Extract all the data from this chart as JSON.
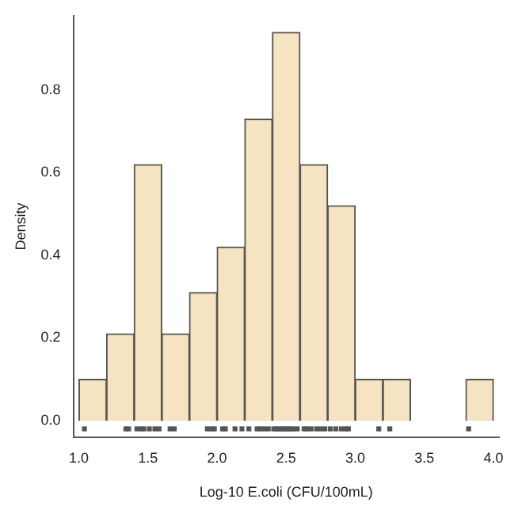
{
  "chart_data": {
    "type": "histogram",
    "xlabel": "Log-10 E.coli (CFU/100mL)",
    "ylabel": "Density",
    "bins": [
      1.0,
      1.2,
      1.4,
      1.6,
      1.8,
      2.0,
      2.2,
      2.4,
      2.6,
      2.8,
      3.0,
      3.2,
      3.4,
      3.6,
      3.8,
      4.0
    ],
    "values": [
      0.1,
      0.21,
      0.62,
      0.21,
      0.31,
      0.42,
      0.73,
      0.94,
      0.62,
      0.52,
      0.1,
      0.1,
      0,
      0,
      0.1
    ],
    "color": "#f5e3c2",
    "series": [
      {
        "type": "scatter",
        "color": "#555555",
        "values": [
          -0.02,
          -0.02,
          -0.02,
          -0.02,
          -0.02,
          -0.02,
          -0.02,
          -0.02,
          -0.02,
          -0.02,
          -0.02,
          -0.02,
          -0.02,
          -0.02,
          -0.02,
          -0.02,
          -0.02,
          -0.02,
          -0.02,
          -0.02,
          -0.02,
          -0.02,
          -0.02,
          -0.02,
          -0.02,
          -0.02,
          -0.02,
          -0.02,
          -0.02,
          -0.02,
          -0.02,
          -0.02,
          -0.02,
          -0.02,
          -0.02,
          -0.02,
          -0.02,
          -0.02,
          -0.02,
          -0.02,
          -0.02,
          -0.02,
          -0.02,
          -0.02,
          -0.02,
          -0.02
        ],
        "x": [
          1.04,
          1.34,
          1.36,
          1.42,
          1.45,
          1.47,
          1.51,
          1.55,
          1.58,
          1.66,
          1.69,
          1.93,
          1.96,
          1.98,
          2.04,
          2.06,
          2.13,
          2.18,
          2.23,
          2.29,
          2.31,
          2.34,
          2.37,
          2.41,
          2.43,
          2.45,
          2.47,
          2.49,
          2.51,
          2.53,
          2.55,
          2.58,
          2.63,
          2.65,
          2.68,
          2.72,
          2.75,
          2.78,
          2.82,
          2.86,
          2.9,
          2.93,
          2.95,
          3.17,
          3.25,
          3.82
        ]
      }
    ],
    "xlim": [
      0.96,
      4.04
    ],
    "ylim": [
      -0.04,
      0.98
    ],
    "xticks": [
      {
        "value": 1,
        "label": "1.0"
      },
      {
        "value": 1.5,
        "label": "1.5"
      },
      {
        "value": 2,
        "label": "2.0"
      },
      {
        "value": 2.5,
        "label": "2.5"
      },
      {
        "value": 3,
        "label": "3.0"
      },
      {
        "value": 3.5,
        "label": "3.5"
      },
      {
        "value": 4,
        "label": "4.0"
      }
    ],
    "yticks": [
      {
        "value": 0,
        "label": "0.0"
      },
      {
        "value": 0.2,
        "label": "0.2"
      },
      {
        "value": 0.4,
        "label": "0.4"
      },
      {
        "value": 0.6,
        "label": "0.6"
      },
      {
        "value": 0.8,
        "label": "0.8"
      }
    ],
    "grid": false,
    "legend": false
  }
}
